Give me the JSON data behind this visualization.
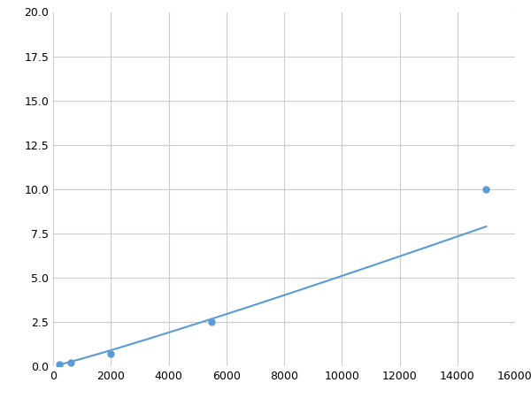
{
  "x_points": [
    200,
    600,
    2000,
    5500,
    15000
  ],
  "y_points": [
    0.1,
    0.2,
    0.7,
    2.5,
    10.0
  ],
  "line_color": "#5b9bd5",
  "marker_color": "#5b9bd5",
  "marker_size": 5,
  "marker_style": "o",
  "linewidth": 1.5,
  "xlim": [
    0,
    16000
  ],
  "ylim": [
    0,
    20
  ],
  "xticks": [
    0,
    2000,
    4000,
    6000,
    8000,
    10000,
    12000,
    14000,
    16000
  ],
  "yticks": [
    0.0,
    2.5,
    5.0,
    7.5,
    10.0,
    12.5,
    15.0,
    17.5,
    20.0
  ],
  "grid": true,
  "grid_color": "#cccccc",
  "grid_linewidth": 0.8,
  "background_color": "#ffffff",
  "figure_width": 6.0,
  "figure_height": 4.5,
  "dpi": 100
}
